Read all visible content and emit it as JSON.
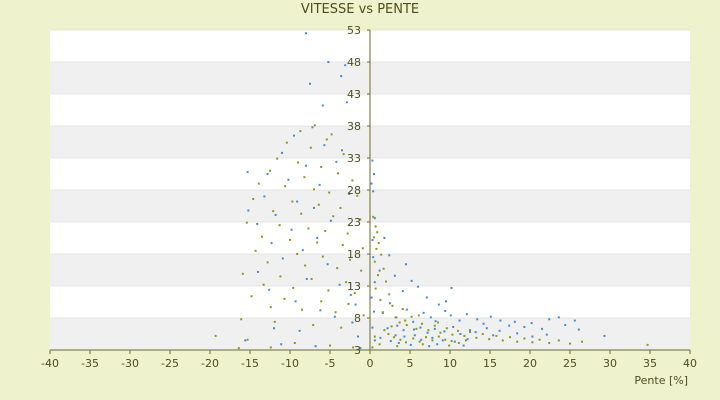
{
  "chart_data": {
    "type": "scatter",
    "title": "VITESSE vs PENTE",
    "xlabel": "Pente [%]",
    "ylabel": "",
    "xlim": [
      -40,
      40
    ],
    "ylim": [
      3,
      53
    ],
    "x_ticks": [
      -40,
      -35,
      -30,
      -25,
      -20,
      -15,
      -10,
      -5,
      0,
      5,
      10,
      15,
      20,
      25,
      30,
      35,
      40
    ],
    "y_ticks": [
      3,
      8,
      13,
      18,
      23,
      28,
      33,
      38,
      43,
      48,
      53
    ],
    "grid": true,
    "legend": "none",
    "colors": {
      "series_1": "#3b8fd9",
      "series_2": "#8a9a12",
      "band": "#f0f0f0",
      "plot_bg": "#ffffff",
      "axis": "#6b6b2a"
    },
    "series": [
      {
        "points": [
          [
            -8,
            52.5
          ],
          [
            -5.2,
            48
          ],
          [
            -3.1,
            47.5
          ],
          [
            -3.6,
            45.8
          ],
          [
            -7.5,
            44.6
          ],
          [
            -2.9,
            41.7
          ],
          [
            -5.9,
            41.2
          ],
          [
            -7.2,
            37.8
          ],
          [
            -9.5,
            36.5
          ],
          [
            -5.7,
            35
          ],
          [
            -3.5,
            34.2
          ],
          [
            -11,
            33.8
          ],
          [
            -8,
            31.8
          ],
          [
            -4.2,
            32.4
          ],
          [
            -15.3,
            30.8
          ],
          [
            -12.8,
            30.5
          ],
          [
            -10.2,
            29.6
          ],
          [
            -6.3,
            28.8
          ],
          [
            -2.6,
            27.4
          ],
          [
            -13.2,
            27
          ],
          [
            -9.1,
            26.2
          ],
          [
            -7,
            25.2
          ],
          [
            -15.2,
            24.8
          ],
          [
            -11.8,
            24.1
          ],
          [
            -4.9,
            23.2
          ],
          [
            -14.1,
            22.7
          ],
          [
            -9.8,
            21.8
          ],
          [
            -6.6,
            20.5
          ],
          [
            -12.3,
            19.7
          ],
          [
            -8.4,
            18.6
          ],
          [
            -10.9,
            17.3
          ],
          [
            -5.3,
            16.4
          ],
          [
            -14,
            15.2
          ],
          [
            -7.9,
            14.1
          ],
          [
            -3.8,
            13.2
          ],
          [
            -12.6,
            12.4
          ],
          [
            -2.4,
            11.6
          ],
          [
            -9.3,
            10.6
          ],
          [
            -1.8,
            10.1
          ],
          [
            -6.2,
            9.2
          ],
          [
            -4.4,
            8.2
          ],
          [
            -2.2,
            7.3
          ],
          [
            -12,
            6.4
          ],
          [
            -8.8,
            6
          ],
          [
            -1.5,
            5.1
          ],
          [
            -15.6,
            4.5
          ],
          [
            -11.1,
            3.9
          ],
          [
            -6.8,
            3.6
          ],
          [
            -1.2,
            3.3
          ],
          [
            0.3,
            32.6
          ],
          [
            0.5,
            30.5
          ],
          [
            0.2,
            29
          ],
          [
            0.4,
            27.8
          ],
          [
            0.6,
            23.6
          ],
          [
            0.3,
            20.2
          ],
          [
            0.4,
            17.5
          ],
          [
            0.6,
            13.6
          ],
          [
            0.2,
            11.2
          ],
          [
            0.5,
            9
          ],
          [
            0.3,
            6.5
          ],
          [
            0.6,
            4.5
          ],
          [
            1.8,
            20.5
          ],
          [
            2.4,
            17.8
          ],
          [
            1.2,
            15.4
          ],
          [
            3.1,
            14.6
          ],
          [
            4.5,
            16.4
          ],
          [
            5.2,
            13.8
          ],
          [
            4.1,
            12.2
          ],
          [
            6,
            12.9
          ],
          [
            7.1,
            11.2
          ],
          [
            10.2,
            12.7
          ],
          [
            9.5,
            10.6
          ],
          [
            8.6,
            10.1
          ],
          [
            2.5,
            10.3
          ],
          [
            1.6,
            8.8
          ],
          [
            3.3,
            8.1
          ],
          [
            4.6,
            9.3
          ],
          [
            5.4,
            7.4
          ],
          [
            6.7,
            8.8
          ],
          [
            7.6,
            8.1
          ],
          [
            8.2,
            7.5
          ],
          [
            9.4,
            9.1
          ],
          [
            10.1,
            8.4
          ],
          [
            11.2,
            7.6
          ],
          [
            12.1,
            8.6
          ],
          [
            13.4,
            7.8
          ],
          [
            14.2,
            7.1
          ],
          [
            15.1,
            8.2
          ],
          [
            16.3,
            7.6
          ],
          [
            17.4,
            6.8
          ],
          [
            18.1,
            7.4
          ],
          [
            19.3,
            6.6
          ],
          [
            20.2,
            7.2
          ],
          [
            21.5,
            6.3
          ],
          [
            22.4,
            7.8
          ],
          [
            23.6,
            8.1
          ],
          [
            24.4,
            6.9
          ],
          [
            25.6,
            7.6
          ],
          [
            26.1,
            6.2
          ],
          [
            29.3,
            5.2
          ],
          [
            2.2,
            6.4
          ],
          [
            3.4,
            6.8
          ],
          [
            4.2,
            6.1
          ],
          [
            5.5,
            6.2
          ],
          [
            6.3,
            6.5
          ],
          [
            7.2,
            5.7
          ],
          [
            8.1,
            6.3
          ],
          [
            9.3,
            5.9
          ],
          [
            10.4,
            6.6
          ],
          [
            11.3,
            5.5
          ],
          [
            12.5,
            6.1
          ],
          [
            13.2,
            5.8
          ],
          [
            14.6,
            6.4
          ],
          [
            15.4,
            5.3
          ],
          [
            16.2,
            6
          ],
          [
            18.4,
            5.6
          ],
          [
            20.3,
            5.1
          ],
          [
            22.1,
            5.4
          ],
          [
            3.2,
            5.3
          ],
          [
            4.3,
            5.1
          ],
          [
            5.6,
            5.3
          ],
          [
            6.4,
            4.6
          ],
          [
            7.8,
            4.9
          ],
          [
            9.1,
            4.5
          ],
          [
            10.6,
            4.3
          ],
          [
            12.2,
            4.7
          ],
          [
            3.6,
            4.1
          ],
          [
            5.1,
            3.8
          ],
          [
            7.4,
            3.6
          ],
          [
            1.3,
            4.9
          ],
          [
            2.6,
            4.4
          ],
          [
            8.4,
            3.9
          ],
          [
            11.7,
            3.7
          ]
        ]
      },
      {
        "points": [
          [
            -6.9,
            38.1
          ],
          [
            -8.7,
            37.2
          ],
          [
            -4.8,
            36.7
          ],
          [
            -5.4,
            35.9
          ],
          [
            -10.4,
            35.4
          ],
          [
            -7.4,
            34.6
          ],
          [
            -3.3,
            33.6
          ],
          [
            -11.6,
            32.9
          ],
          [
            -9,
            32.3
          ],
          [
            -6.1,
            31.6
          ],
          [
            -12.5,
            31
          ],
          [
            -4,
            30.6
          ],
          [
            -8.2,
            30
          ],
          [
            -2.2,
            29.5
          ],
          [
            -13.9,
            29
          ],
          [
            -10.6,
            28.6
          ],
          [
            -7,
            28.1
          ],
          [
            -5.1,
            27.6
          ],
          [
            -1.6,
            27.1
          ],
          [
            -14.6,
            26.6
          ],
          [
            -9.7,
            26.2
          ],
          [
            -6.4,
            25.7
          ],
          [
            -3.7,
            25.2
          ],
          [
            -12.1,
            24.7
          ],
          [
            -8.6,
            24.3
          ],
          [
            -4.6,
            23.9
          ],
          [
            -1.2,
            23.4
          ],
          [
            -15.4,
            22.9
          ],
          [
            -11.3,
            22.5
          ],
          [
            -7.7,
            22
          ],
          [
            -5.6,
            21.6
          ],
          [
            -2.8,
            21.2
          ],
          [
            -13.5,
            20.7
          ],
          [
            -10,
            20.2
          ],
          [
            -6.6,
            19.8
          ],
          [
            -3.4,
            19.4
          ],
          [
            -0.9,
            18.9
          ],
          [
            -14.3,
            18.5
          ],
          [
            -9.1,
            18
          ],
          [
            -5.9,
            17.6
          ],
          [
            -2.5,
            17.1
          ],
          [
            -12.8,
            16.7
          ],
          [
            -8.1,
            16.2
          ],
          [
            -4.1,
            15.8
          ],
          [
            -1.1,
            15.4
          ],
          [
            -15.9,
            14.9
          ],
          [
            -11.2,
            14.5
          ],
          [
            -7.3,
            14.1
          ],
          [
            -3,
            13.6
          ],
          [
            -13.3,
            13.2
          ],
          [
            -9.6,
            12.7
          ],
          [
            -5.2,
            12.3
          ],
          [
            -1.9,
            11.9
          ],
          [
            -14.8,
            11.4
          ],
          [
            -10.7,
            11
          ],
          [
            -6.1,
            10.6
          ],
          [
            -2.7,
            10.2
          ],
          [
            -12.4,
            9.7
          ],
          [
            -8.5,
            9.3
          ],
          [
            -4.3,
            8.9
          ],
          [
            -0.8,
            8.4
          ],
          [
            -16.1,
            7.8
          ],
          [
            -11.9,
            7.4
          ],
          [
            -7.1,
            6.9
          ],
          [
            -3.6,
            6.5
          ],
          [
            -19.3,
            5.2
          ],
          [
            -15.3,
            4.6
          ],
          [
            -9.4,
            4.1
          ],
          [
            -5,
            3.7
          ],
          [
            -2.1,
            3.4
          ],
          [
            -16.4,
            3.3
          ],
          [
            -12.4,
            3.4
          ],
          [
            0.4,
            23.8
          ],
          [
            0.7,
            22.3
          ],
          [
            0.9,
            21.4
          ],
          [
            0.5,
            20.6
          ],
          [
            1.1,
            19.7
          ],
          [
            0.8,
            18.8
          ],
          [
            1.4,
            17.9
          ],
          [
            0.6,
            16.8
          ],
          [
            1.7,
            15.7
          ],
          [
            1,
            14.7
          ],
          [
            2,
            13.7
          ],
          [
            0.7,
            12.6
          ],
          [
            2.4,
            11.7
          ],
          [
            1.3,
            10.8
          ],
          [
            2.8,
            9.9
          ],
          [
            1.6,
            8.9
          ],
          [
            3.2,
            8.1
          ],
          [
            4.1,
            9.4
          ],
          [
            3.7,
            7.3
          ],
          [
            4.6,
            6.9
          ],
          [
            5.2,
            8.2
          ],
          [
            5.8,
            6.3
          ],
          [
            6.5,
            7.1
          ],
          [
            7.3,
            6.1
          ],
          [
            8.1,
            6.8
          ],
          [
            8.8,
            5.7
          ],
          [
            9.6,
            6.4
          ],
          [
            10.3,
            5.4
          ],
          [
            11,
            6
          ],
          [
            11.8,
            5.2
          ],
          [
            12.5,
            5.8
          ],
          [
            13.3,
            4.9
          ],
          [
            14.1,
            5.5
          ],
          [
            14.9,
            4.7
          ],
          [
            15.8,
            5.2
          ],
          [
            16.6,
            4.5
          ],
          [
            17.5,
            5
          ],
          [
            18.4,
            4.3
          ],
          [
            19.3,
            4.8
          ],
          [
            20.3,
            4.2
          ],
          [
            21.2,
            4.6
          ],
          [
            22.4,
            4.1
          ],
          [
            23.6,
            4.5
          ],
          [
            25,
            4
          ],
          [
            26.5,
            4.3
          ],
          [
            34.7,
            3.8
          ],
          [
            2.3,
            5.5
          ],
          [
            3,
            5
          ],
          [
            3.8,
            4.6
          ],
          [
            4.5,
            4.2
          ],
          [
            5.4,
            4.8
          ],
          [
            6.2,
            4.3
          ],
          [
            7,
            5
          ],
          [
            7.8,
            4.5
          ],
          [
            8.6,
            5.1
          ],
          [
            9.4,
            4.6
          ],
          [
            10.2,
            4.4
          ],
          [
            11.1,
            4.1
          ],
          [
            12,
            4.5
          ],
          [
            1.8,
            6.1
          ],
          [
            2.7,
            6.7
          ],
          [
            4.4,
            7.6
          ],
          [
            6.1,
            8.4
          ],
          [
            8.5,
            7.3
          ],
          [
            0.3,
            3.4
          ],
          [
            0.6,
            5.1
          ],
          [
            1.2,
            3.9
          ],
          [
            3.4,
            3.6
          ],
          [
            6.6,
            3.9
          ],
          [
            9.9,
            3.7
          ]
        ]
      }
    ]
  }
}
